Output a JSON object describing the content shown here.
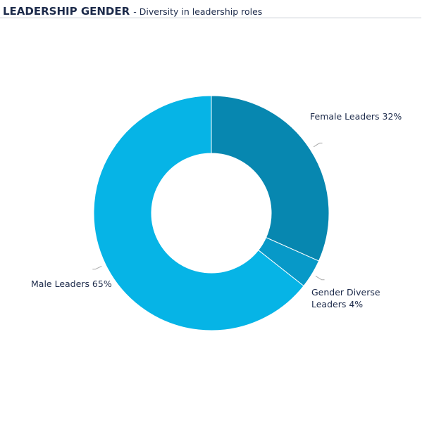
{
  "chart_data": {
    "type": "donut",
    "title": "LEADERSHIP GENDER",
    "subtitle": "- Diversity in leadership roles",
    "values": [
      32,
      4,
      65
    ],
    "value_labels": [
      "Female Leaders 32%",
      "Gender Diverse Leaders 4%",
      "Male Leaders 65%"
    ],
    "colors": [
      "#0787b0",
      "#0799c8",
      "#06b4e6"
    ]
  }
}
